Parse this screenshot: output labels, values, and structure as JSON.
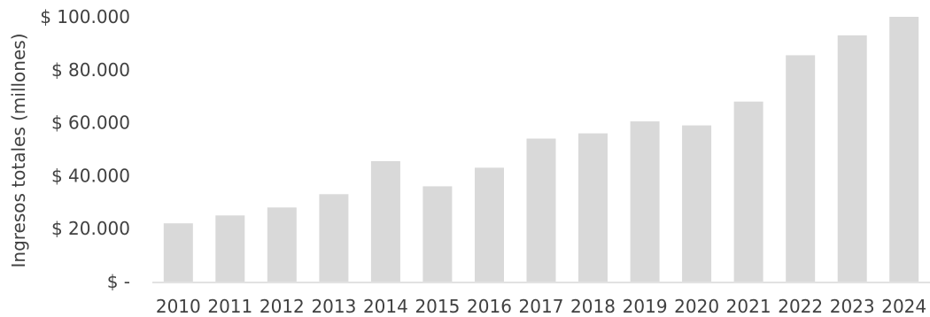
{
  "chart_data": {
    "type": "bar",
    "ylabel": "Ingresos totales (millones)",
    "xlabel": "",
    "categories": [
      "2010",
      "2011",
      "2012",
      "2013",
      "2014",
      "2015",
      "2016",
      "2017",
      "2018",
      "2019",
      "2020",
      "2021",
      "2022",
      "2023",
      "2024"
    ],
    "values": [
      22000,
      25000,
      28000,
      33000,
      45500,
      36000,
      43000,
      54000,
      56000,
      60500,
      59000,
      68000,
      85500,
      93000,
      100000
    ],
    "ylim": [
      0,
      100000
    ],
    "yticks": [
      0,
      20000,
      40000,
      60000,
      80000,
      100000
    ],
    "ytick_labels": [
      "$ -",
      "$ 20.000",
      "$ 40.000",
      "$ 60.000",
      "$ 80.000",
      "$ 100.000"
    ],
    "bar_color": "#d9d9d9",
    "axis_color": "#d9d9d9",
    "text_color": "#404040",
    "grid": false,
    "legend": "none"
  }
}
